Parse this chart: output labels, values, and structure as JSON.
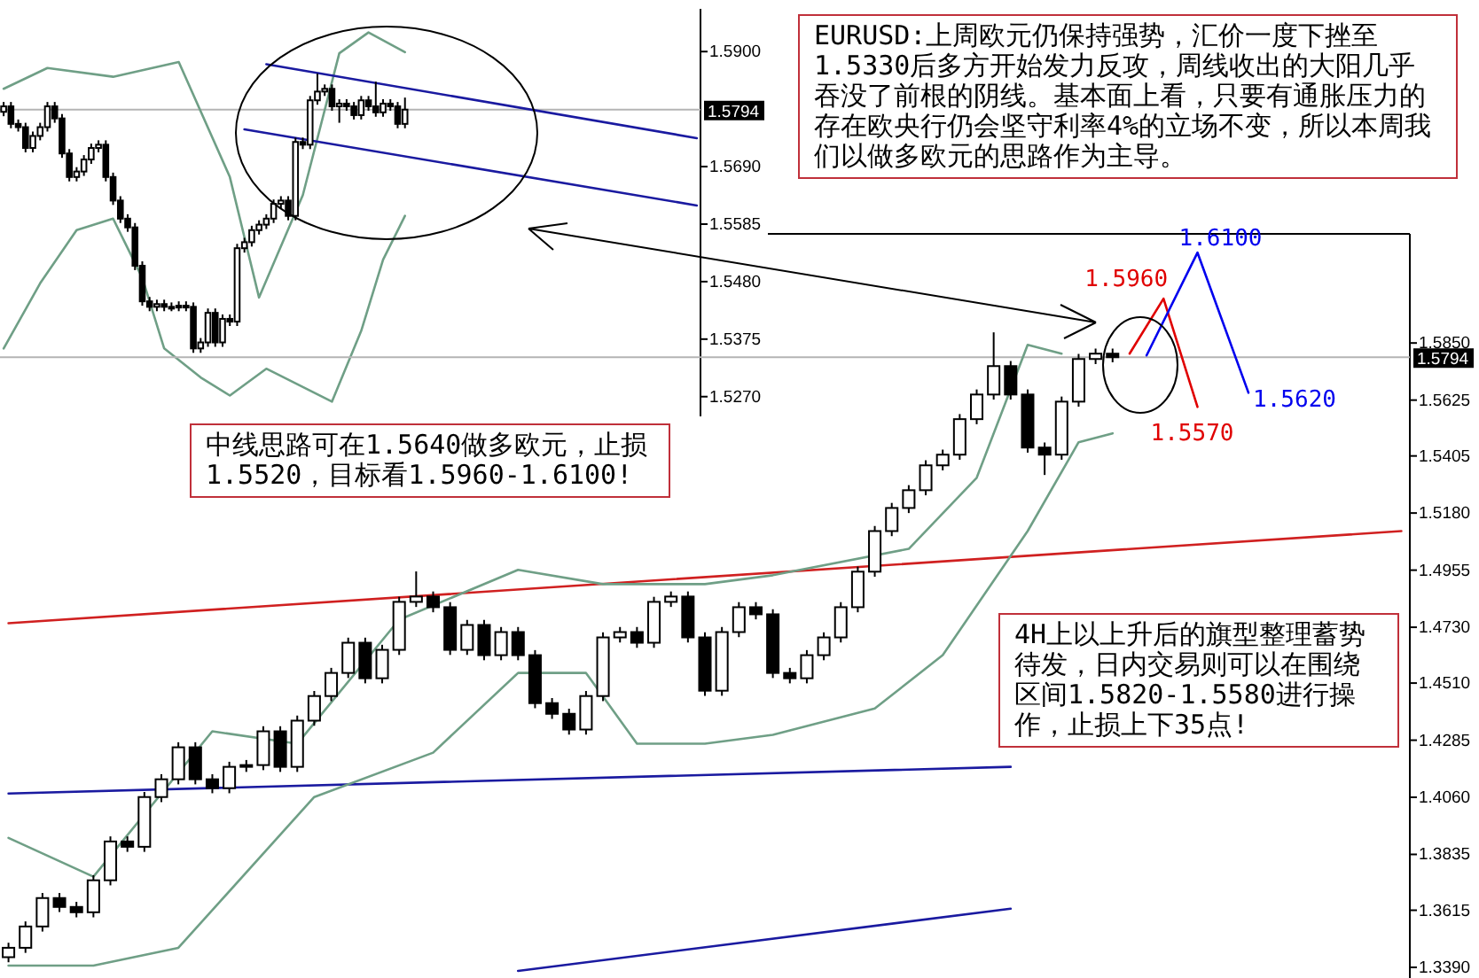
{
  "chart_data": [
    {
      "type": "candlestick",
      "ylim": [
        1.5234,
        1.5978
      ],
      "tick_labels": "y",
      "yticks": [
        {
          "value": 1.59,
          "label": "1.5900"
        },
        {
          "value": 1.569,
          "label": "1.5690"
        },
        {
          "value": 1.5585,
          "label": "1.5585"
        },
        {
          "value": 1.548,
          "label": "1.5480"
        },
        {
          "value": 1.5375,
          "label": "1.5375"
        },
        {
          "value": 1.527,
          "label": "1.5270"
        }
      ],
      "ref_lines": [
        {
          "axis": "y",
          "value": 1.5794,
          "label": "1.5794",
          "color": "#b4b4b4"
        }
      ],
      "categories": [
        null,
        null,
        null,
        null,
        null,
        null,
        null,
        null,
        null,
        null,
        null,
        null,
        null,
        null,
        null,
        null,
        null,
        null,
        null,
        null,
        null,
        null,
        null,
        null,
        null,
        null,
        null,
        null,
        null,
        null,
        null,
        null,
        null,
        null,
        null,
        null,
        null,
        null,
        null,
        null,
        null,
        null,
        null,
        null,
        null,
        null,
        null,
        null,
        null,
        null,
        null,
        null,
        null,
        null,
        null,
        null,
        null,
        null,
        null,
        null,
        null,
        null,
        null,
        null,
        null,
        null,
        null,
        null,
        null,
        null,
        null,
        null,
        null,
        null,
        null,
        null,
        null,
        null,
        null,
        null,
        null,
        null,
        null,
        null,
        null,
        null,
        null,
        null,
        null,
        null,
        null,
        null,
        null,
        null,
        null,
        null
      ],
      "ohlc": [
        [
          1.579,
          1.5808,
          1.5782,
          1.58
        ],
        [
          1.58,
          1.5808,
          1.576,
          1.5768
        ],
        [
          1.5768,
          1.5776,
          1.5754,
          1.5762
        ],
        [
          1.5762,
          1.577,
          1.5716,
          1.5724
        ],
        [
          1.5724,
          1.5754,
          1.5716,
          1.5746
        ],
        [
          1.5746,
          1.577,
          1.5738,
          1.5762
        ],
        [
          1.5762,
          1.5808,
          1.5754,
          1.58
        ],
        [
          1.58,
          1.5808,
          1.577,
          1.5778
        ],
        [
          1.5778,
          1.5786,
          1.5706,
          1.5714
        ],
        [
          1.5714,
          1.5722,
          1.5663,
          1.5671
        ],
        [
          1.5671,
          1.5689,
          1.5663,
          1.5681
        ],
        [
          1.5681,
          1.5711,
          1.5673,
          1.5703
        ],
        [
          1.5703,
          1.5732,
          1.5695,
          1.5724
        ],
        [
          1.5724,
          1.5738,
          1.5716,
          1.573
        ],
        [
          1.573,
          1.5738,
          1.5663,
          1.5671
        ],
        [
          1.5671,
          1.5679,
          1.562,
          1.5628
        ],
        [
          1.5628,
          1.5636,
          1.5587,
          1.5595
        ],
        [
          1.5595,
          1.5603,
          1.5571,
          1.5579
        ],
        [
          1.5579,
          1.5587,
          1.5501,
          1.5509
        ],
        [
          1.5509,
          1.5517,
          1.5436,
          1.5444
        ],
        [
          1.5444,
          1.5452,
          1.5426,
          1.5434
        ],
        [
          1.5434,
          1.5447,
          1.5426,
          1.5439
        ],
        [
          1.5439,
          1.5447,
          1.5426,
          1.5434
        ],
        [
          1.5434,
          1.5442,
          1.5426,
          1.5434
        ],
        [
          1.5434,
          1.5444,
          1.5426,
          1.5436
        ],
        [
          1.5436,
          1.5444,
          1.5426,
          1.5434
        ],
        [
          1.5434,
          1.5442,
          1.535,
          1.5358
        ],
        [
          1.5358,
          1.5377,
          1.535,
          1.5369
        ],
        [
          1.5369,
          1.5431,
          1.5361,
          1.5423
        ],
        [
          1.5423,
          1.5431,
          1.5361,
          1.5369
        ],
        [
          1.5369,
          1.542,
          1.5361,
          1.5412
        ],
        [
          1.5412,
          1.542,
          1.5399,
          1.5407
        ],
        [
          1.5407,
          1.5549,
          1.5399,
          1.5541
        ],
        [
          1.5541,
          1.556,
          1.5533,
          1.5552
        ],
        [
          1.5552,
          1.5582,
          1.5544,
          1.5574
        ],
        [
          1.5574,
          1.5592,
          1.5566,
          1.5584
        ],
        [
          1.5584,
          1.5603,
          1.5576,
          1.5595
        ],
        [
          1.5595,
          1.563,
          1.5587,
          1.5622
        ],
        [
          1.5622,
          1.5636,
          1.5614,
          1.5628
        ],
        [
          1.5628,
          1.5636,
          1.5592,
          1.56
        ],
        [
          1.56,
          1.5743,
          1.5592,
          1.5735
        ],
        [
          1.5735,
          1.5743,
          1.5722,
          1.573
        ],
        [
          1.573,
          1.5819,
          1.5722,
          1.5811
        ],
        [
          1.5811,
          1.586,
          1.5803,
          1.5827
        ],
        [
          1.5827,
          1.584,
          1.5819,
          1.5832
        ],
        [
          1.5832,
          1.584,
          1.5792,
          1.58
        ],
        [
          1.58,
          1.5813,
          1.577,
          1.5805
        ],
        [
          1.5805,
          1.5813,
          1.5792,
          1.58
        ],
        [
          1.58,
          1.5808,
          1.5776,
          1.5784
        ],
        [
          1.5784,
          1.5819,
          1.5776,
          1.5811
        ],
        [
          1.5811,
          1.5819,
          1.5792,
          1.58
        ],
        [
          1.58,
          1.5845,
          1.5781,
          1.5789
        ],
        [
          1.5789,
          1.5813,
          1.5781,
          1.5805
        ],
        [
          1.5805,
          1.5813,
          1.5792,
          1.58
        ],
        [
          1.58,
          1.5808,
          1.576,
          1.5768
        ],
        [
          1.5768,
          1.5816,
          1.576,
          1.5794
        ],
        null,
        null,
        null,
        null,
        null,
        null,
        null,
        null,
        null,
        null,
        null,
        null,
        null,
        null,
        null,
        null,
        null,
        null,
        null,
        null,
        null,
        null,
        null,
        null,
        null,
        null,
        null,
        null,
        null,
        null,
        null,
        null,
        null,
        null,
        null,
        null,
        null,
        null,
        null,
        null
      ],
      "series": [
        {
          "type": "line",
          "color": "#6f9f86",
          "values": [
            1.5832,
            null,
            null,
            null,
            null,
            null,
            1.587,
            null,
            null,
            null,
            null,
            null,
            null,
            null,
            null,
            1.5854,
            null,
            null,
            null,
            null,
            null,
            null,
            null,
            null,
            1.5881,
            null,
            null,
            null,
            null,
            null,
            null,
            1.5671,
            null,
            null,
            null,
            1.5451,
            null,
            null,
            null,
            null,
            null,
            1.5638,
            null,
            null,
            null,
            null,
            1.5897,
            null,
            null,
            null,
            1.5935,
            null,
            null,
            null,
            null,
            1.5899,
            null,
            null,
            null,
            null,
            null,
            null,
            null,
            null,
            null,
            null,
            null,
            null,
            null,
            null,
            null,
            null,
            null,
            null,
            null,
            null,
            null,
            null,
            null,
            null,
            null,
            null,
            null,
            null,
            null,
            null,
            null,
            null,
            null,
            null,
            null,
            null,
            null,
            null,
            null,
            null
          ]
        },
        {
          "type": "line",
          "color": "#6f9f86",
          "values": [
            1.5358,
            null,
            null,
            null,
            null,
            1.5477,
            null,
            null,
            null,
            null,
            1.5574,
            null,
            null,
            null,
            null,
            1.5595,
            null,
            null,
            null,
            1.5487,
            null,
            null,
            1.5358,
            null,
            null,
            null,
            null,
            1.5305,
            null,
            null,
            null,
            1.5272,
            null,
            null,
            null,
            null,
            1.5321,
            null,
            null,
            null,
            null,
            null,
            null,
            null,
            null,
            1.5261,
            null,
            null,
            null,
            1.539,
            null,
            null,
            1.552,
            null,
            null,
            1.56,
            null,
            null,
            null,
            null,
            null,
            null,
            null,
            null,
            null,
            null,
            null,
            null,
            null,
            null,
            null,
            null,
            null,
            null,
            null,
            null,
            null,
            null,
            null,
            null,
            null,
            null,
            null,
            null,
            null,
            null,
            null,
            null,
            null,
            null,
            null,
            null,
            null,
            null,
            null,
            null
          ]
        },
        {
          "type": "line",
          "color": "#1a1aa0",
          "values": [
            null,
            null,
            null,
            null,
            null,
            null,
            null,
            null,
            null,
            null,
            null,
            null,
            null,
            null,
            null,
            null,
            null,
            null,
            null,
            null,
            null,
            null,
            null,
            null,
            null,
            null,
            null,
            null,
            null,
            null,
            null,
            null,
            null,
            null,
            null,
            null,
            1.5877,
            null,
            null,
            null,
            null,
            null,
            null,
            null,
            null,
            null,
            null,
            null,
            null,
            null,
            null,
            null,
            null,
            null,
            null,
            null,
            null,
            null,
            null,
            null,
            null,
            null,
            null,
            null,
            null,
            null,
            null,
            null,
            null,
            null,
            null,
            null,
            null,
            null,
            null,
            null,
            null,
            null,
            null,
            null,
            null,
            null,
            null,
            null,
            null,
            null,
            null,
            null,
            null,
            null,
            null,
            null,
            null,
            null,
            null,
            1.5742
          ]
        },
        {
          "type": "line",
          "color": "#1a1aa0",
          "values": [
            null,
            null,
            null,
            null,
            null,
            null,
            null,
            null,
            null,
            null,
            null,
            null,
            null,
            null,
            null,
            null,
            null,
            null,
            null,
            null,
            null,
            null,
            null,
            null,
            null,
            null,
            null,
            null,
            null,
            null,
            null,
            null,
            null,
            1.5758,
            null,
            null,
            null,
            null,
            null,
            null,
            null,
            null,
            null,
            null,
            null,
            null,
            null,
            null,
            null,
            null,
            null,
            null,
            null,
            null,
            null,
            null,
            null,
            null,
            null,
            null,
            null,
            null,
            null,
            null,
            null,
            null,
            null,
            null,
            null,
            null,
            null,
            null,
            null,
            null,
            null,
            null,
            null,
            null,
            null,
            null,
            null,
            null,
            null,
            null,
            null,
            null,
            null,
            null,
            null,
            null,
            null,
            null,
            null,
            null,
            null,
            1.5619
          ]
        }
      ]
    },
    {
      "type": "candlestick",
      "ylim": [
        1.3348,
        1.628
      ],
      "tick_labels": "y",
      "yticks": [
        {
          "value": 1.585,
          "label": "1.5850"
        },
        {
          "value": 1.5625,
          "label": "1.5625"
        },
        {
          "value": 1.5405,
          "label": "1.5405"
        },
        {
          "value": 1.518,
          "label": "1.5180"
        },
        {
          "value": 1.4955,
          "label": "1.4955"
        },
        {
          "value": 1.473,
          "label": "1.4730"
        },
        {
          "value": 1.451,
          "label": "1.4510"
        },
        {
          "value": 1.4285,
          "label": "1.4285"
        },
        {
          "value": 1.406,
          "label": "1.4060"
        },
        {
          "value": 1.3835,
          "label": "1.3835"
        },
        {
          "value": 1.3615,
          "label": "1.3615"
        },
        {
          "value": 1.339,
          "label": "1.3390"
        }
      ],
      "ref_lines": [
        {
          "axis": "y",
          "value": 1.5794,
          "label": "1.5794",
          "color": "#b4b4b4"
        }
      ],
      "categories": [
        null,
        null,
        null,
        null,
        null,
        null,
        null,
        null,
        null,
        null,
        null,
        null,
        null,
        null,
        null,
        null,
        null,
        null,
        null,
        null,
        null,
        null,
        null,
        null,
        null,
        null,
        null,
        null,
        null,
        null,
        null,
        null,
        null,
        null,
        null,
        null,
        null,
        null,
        null,
        null,
        null,
        null,
        null,
        null,
        null,
        null,
        null,
        null,
        null,
        null,
        null,
        null,
        null,
        null,
        null,
        null,
        null,
        null,
        null,
        null,
        null,
        null,
        null,
        null,
        null,
        null,
        null,
        null,
        null,
        null,
        null,
        null,
        null,
        null,
        null,
        null,
        null,
        null,
        null,
        null,
        null,
        null,
        null
      ],
      "ohlc": [
        [
          1.343,
          1.3487,
          1.341,
          1.3467
        ],
        [
          1.3467,
          1.3571,
          1.3447,
          1.3551
        ],
        [
          1.3551,
          1.3683,
          1.3531,
          1.3663
        ],
        [
          1.3663,
          1.3683,
          1.3608,
          1.3628
        ],
        [
          1.3628,
          1.3648,
          1.3587,
          1.3607
        ],
        [
          1.3607,
          1.3753,
          1.3587,
          1.3733
        ],
        [
          1.3733,
          1.3906,
          1.3713,
          1.3886
        ],
        [
          1.3886,
          1.3906,
          1.3845,
          1.3865
        ],
        [
          1.3865,
          1.4081,
          1.3845,
          1.4061
        ],
        [
          1.4061,
          1.4151,
          1.4041,
          1.4131
        ],
        [
          1.4131,
          1.4277,
          1.4111,
          1.4257
        ],
        [
          1.4257,
          1.4277,
          1.4111,
          1.4131
        ],
        [
          1.4131,
          1.4151,
          1.4076,
          1.4096
        ],
        [
          1.4096,
          1.42,
          1.4076,
          1.418
        ],
        [
          1.418,
          1.4207,
          1.416,
          1.4187
        ],
        [
          1.4187,
          1.434,
          1.4167,
          1.432
        ],
        [
          1.432,
          1.434,
          1.416,
          1.418
        ],
        [
          1.418,
          1.4382,
          1.416,
          1.4362
        ],
        [
          1.4362,
          1.4479,
          1.4342,
          1.4459
        ],
        [
          1.4459,
          1.457,
          1.4439,
          1.455
        ],
        [
          1.455,
          1.4689,
          1.453,
          1.4669
        ],
        [
          1.4669,
          1.4689,
          1.4509,
          1.4529
        ],
        [
          1.4529,
          1.4661,
          1.4509,
          1.4641
        ],
        [
          1.4641,
          1.485,
          1.4621,
          1.483
        ],
        [
          1.483,
          1.495,
          1.481,
          1.4851
        ],
        [
          1.4851,
          1.4871,
          1.4789,
          1.4809
        ],
        [
          1.4809,
          1.4829,
          1.4621,
          1.4641
        ],
        [
          1.4641,
          1.4759,
          1.4621,
          1.4739
        ],
        [
          1.4739,
          1.4759,
          1.46,
          1.462
        ],
        [
          1.462,
          1.4731,
          1.46,
          1.4711
        ],
        [
          1.4711,
          1.4731,
          1.46,
          1.462
        ],
        [
          1.462,
          1.464,
          1.4411,
          1.4431
        ],
        [
          1.4431,
          1.4451,
          1.4369,
          1.4389
        ],
        [
          1.4389,
          1.4409,
          1.4307,
          1.4327
        ],
        [
          1.4327,
          1.4479,
          1.4307,
          1.4459
        ],
        [
          1.4459,
          1.471,
          1.4439,
          1.469
        ],
        [
          1.469,
          1.4731,
          1.467,
          1.4711
        ],
        [
          1.4711,
          1.4731,
          1.4649,
          1.4669
        ],
        [
          1.4669,
          1.485,
          1.4649,
          1.483
        ],
        [
          1.483,
          1.4871,
          1.481,
          1.4851
        ],
        [
          1.4851,
          1.4871,
          1.467,
          1.469
        ],
        [
          1.469,
          1.471,
          1.446,
          1.448
        ],
        [
          1.448,
          1.4731,
          1.446,
          1.4711
        ],
        [
          1.4711,
          1.4829,
          1.4691,
          1.4809
        ],
        [
          1.4809,
          1.4829,
          1.4761,
          1.4781
        ],
        [
          1.4781,
          1.4801,
          1.453,
          1.455
        ],
        [
          1.455,
          1.457,
          1.4509,
          1.4529
        ],
        [
          1.4529,
          1.464,
          1.4509,
          1.462
        ],
        [
          1.462,
          1.471,
          1.46,
          1.469
        ],
        [
          1.469,
          1.4829,
          1.467,
          1.4809
        ],
        [
          1.4809,
          1.4969,
          1.4789,
          1.4949
        ],
        [
          1.4949,
          1.5129,
          1.4929,
          1.5109
        ],
        [
          1.5109,
          1.522,
          1.5089,
          1.52
        ],
        [
          1.52,
          1.529,
          1.518,
          1.527
        ],
        [
          1.527,
          1.5388,
          1.525,
          1.5368
        ],
        [
          1.5368,
          1.543,
          1.5348,
          1.541
        ],
        [
          1.541,
          1.557,
          1.539,
          1.555
        ],
        [
          1.555,
          1.5667,
          1.553,
          1.5647
        ],
        [
          1.5647,
          1.5892,
          1.5627,
          1.5759
        ],
        [
          1.5759,
          1.5779,
          1.5627,
          1.5647
        ],
        [
          1.5647,
          1.5667,
          1.5418,
          1.5438
        ],
        [
          1.5438,
          1.5458,
          1.533,
          1.541
        ],
        [
          1.541,
          1.5639,
          1.539,
          1.5619
        ],
        [
          1.5619,
          1.5807,
          1.5599,
          1.5787
        ],
        [
          1.5787,
          1.5828,
          1.5767,
          1.5808
        ],
        [
          1.5808,
          1.5828,
          1.5774,
          1.5794
        ],
        null,
        null,
        null,
        null,
        null,
        null,
        null,
        null,
        null,
        null,
        null,
        null,
        null,
        null,
        null,
        null,
        null
      ],
      "series": [
        {
          "type": "line",
          "color": "#d02020",
          "values": [
            1.4746,
            null,
            null,
            null,
            null,
            null,
            null,
            null,
            null,
            null,
            null,
            null,
            null,
            null,
            null,
            null,
            null,
            null,
            null,
            null,
            null,
            null,
            null,
            null,
            null,
            null,
            null,
            null,
            null,
            null,
            null,
            null,
            null,
            null,
            null,
            null,
            null,
            null,
            null,
            null,
            null,
            null,
            null,
            null,
            null,
            null,
            null,
            null,
            null,
            null,
            null,
            null,
            null,
            null,
            null,
            null,
            null,
            null,
            null,
            null,
            null,
            null,
            null,
            null,
            null,
            null,
            null,
            null,
            null,
            null,
            null,
            null,
            null,
            null,
            null,
            null,
            null,
            null,
            null,
            null,
            null,
            null,
            1.5109
          ]
        },
        {
          "type": "line",
          "color": "#1a1aa0",
          "values": [
            1.4075,
            null,
            null,
            null,
            null,
            null,
            null,
            null,
            null,
            null,
            null,
            null,
            null,
            null,
            null,
            null,
            null,
            null,
            null,
            null,
            null,
            null,
            null,
            null,
            null,
            null,
            null,
            null,
            null,
            null,
            null,
            null,
            null,
            null,
            null,
            null,
            null,
            null,
            null,
            null,
            null,
            null,
            null,
            null,
            null,
            null,
            null,
            null,
            null,
            null,
            null,
            null,
            null,
            null,
            null,
            null,
            null,
            null,
            null,
            1.418,
            null,
            null,
            null,
            null,
            null,
            null,
            null,
            null,
            null,
            null,
            null,
            null,
            null,
            null,
            null,
            null,
            null,
            null,
            null,
            null,
            null,
            null,
            null
          ]
        },
        {
          "type": "line",
          "color": "#1a1aa0",
          "values": [
            null,
            null,
            null,
            null,
            null,
            null,
            null,
            null,
            null,
            null,
            null,
            null,
            null,
            null,
            null,
            null,
            null,
            null,
            null,
            null,
            null,
            null,
            null,
            null,
            null,
            null,
            null,
            null,
            null,
            null,
            1.3376,
            null,
            null,
            null,
            null,
            null,
            null,
            null,
            null,
            null,
            null,
            null,
            null,
            null,
            null,
            null,
            null,
            null,
            null,
            null,
            null,
            null,
            null,
            null,
            null,
            null,
            null,
            null,
            null,
            1.3621,
            null,
            null,
            null,
            null,
            null,
            null,
            null,
            null,
            null,
            null,
            null,
            null,
            null,
            null,
            null,
            null,
            null,
            null,
            null,
            null,
            null,
            null,
            null
          ]
        },
        {
          "type": "line",
          "color": "#6f9f86",
          "values": [
            1.39,
            null,
            null,
            null,
            null,
            1.3747,
            null,
            null,
            null,
            null,
            null,
            null,
            1.432,
            null,
            null,
            null,
            null,
            1.4271,
            null,
            null,
            null,
            null,
            null,
            1.476,
            null,
            null,
            null,
            null,
            null,
            null,
            1.4956,
            null,
            null,
            null,
            null,
            1.49,
            null,
            null,
            null,
            null,
            null,
            1.49,
            null,
            null,
            null,
            1.4935,
            null,
            null,
            null,
            null,
            null,
            null,
            null,
            1.5039,
            null,
            null,
            null,
            1.5319,
            null,
            null,
            1.5843,
            null,
            1.5808,
            null,
            null,
            null,
            null,
            null,
            null,
            null,
            null,
            null,
            null,
            null,
            null,
            null,
            null,
            null,
            null,
            null,
            null,
            null,
            null
          ]
        },
        {
          "type": "line",
          "color": "#6f9f86",
          "values": [
            1.3397,
            null,
            null,
            null,
            null,
            1.3397,
            null,
            null,
            null,
            null,
            1.3467,
            null,
            null,
            null,
            null,
            null,
            null,
            null,
            1.4061,
            null,
            null,
            null,
            null,
            null,
            null,
            1.4236,
            null,
            null,
            null,
            null,
            1.455,
            null,
            null,
            null,
            1.455,
            null,
            null,
            1.4271,
            null,
            null,
            null,
            1.4271,
            null,
            null,
            null,
            1.4306,
            null,
            null,
            null,
            null,
            null,
            1.441,
            null,
            null,
            null,
            1.462,
            null,
            null,
            null,
            null,
            1.5109,
            null,
            null,
            1.5459,
            null,
            1.5494,
            null,
            null,
            null,
            null,
            null,
            null,
            null,
            null,
            null,
            null,
            null,
            null,
            null,
            null,
            null,
            null,
            null
          ]
        },
        {
          "type": "line",
          "color": "#e00000",
          "values": [
            null,
            null,
            null,
            null,
            null,
            null,
            null,
            null,
            null,
            null,
            null,
            null,
            null,
            null,
            null,
            null,
            null,
            null,
            null,
            null,
            null,
            null,
            null,
            null,
            null,
            null,
            null,
            null,
            null,
            null,
            null,
            null,
            null,
            null,
            null,
            null,
            null,
            null,
            null,
            null,
            null,
            null,
            null,
            null,
            null,
            null,
            null,
            null,
            null,
            null,
            null,
            null,
            null,
            null,
            null,
            null,
            null,
            null,
            null,
            null,
            null,
            null,
            null,
            null,
            null,
            null,
            1.5808,
            null,
            1.6025,
            null,
            1.5598,
            null,
            null,
            null,
            null,
            null,
            null,
            null,
            null,
            null,
            null,
            null,
            null
          ]
        },
        {
          "type": "line",
          "color": "#0000ee",
          "values": [
            null,
            null,
            null,
            null,
            null,
            null,
            null,
            null,
            null,
            null,
            null,
            null,
            null,
            null,
            null,
            null,
            null,
            null,
            null,
            null,
            null,
            null,
            null,
            null,
            null,
            null,
            null,
            null,
            null,
            null,
            null,
            null,
            null,
            null,
            null,
            null,
            null,
            null,
            null,
            null,
            null,
            null,
            null,
            null,
            null,
            null,
            null,
            null,
            null,
            null,
            null,
            null,
            null,
            null,
            null,
            null,
            null,
            null,
            null,
            null,
            null,
            null,
            null,
            null,
            null,
            null,
            null,
            1.5801,
            null,
            null,
            1.6206,
            null,
            null,
            1.5654,
            null,
            null,
            null,
            null,
            null,
            null,
            null,
            null,
            null
          ]
        }
      ],
      "annotations": [
        "EURUSD:上周欧元仍保持强势，汇价一度下挫至1.5330后多方开始发力反攻，周线收出的大阳几乎吞没了前根的阴线。基本面上看，只要有通胀压力的存在欧央行仍会坚守利率4%的立场不变，所以本周我们以做多欧元的思路作为主导。",
        "中线思路可在1.5640做多欧元，止损1.5520，目标看1.5960-1.6100!",
        "4H上以上升后的旗型整理蓄势待发，日内交易则可以在围绕区间1.5820-1.5580进行操作，止损上下35点!",
        "1.5960",
        "1.5570",
        "1.6100",
        "1.5620"
      ]
    }
  ]
}
